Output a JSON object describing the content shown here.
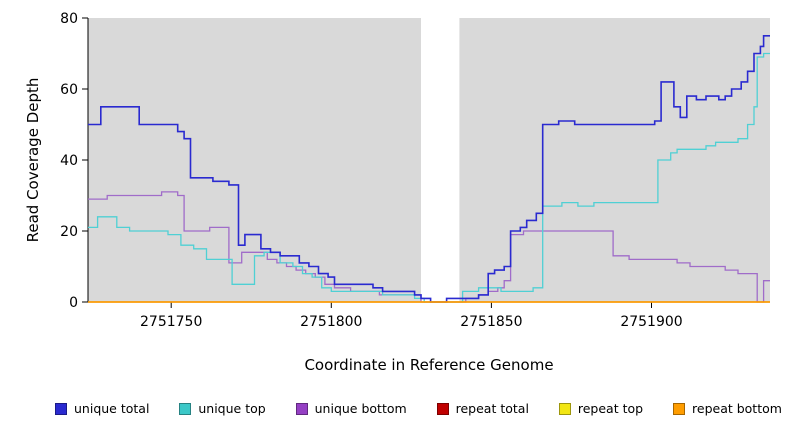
{
  "figure": {
    "xlabel": "Coordinate in Reference Genome",
    "ylabel": "Read Coverage Depth"
  },
  "chart_data": {
    "type": "line",
    "step": true,
    "title": "",
    "xlabel": "Coordinate in Reference Genome",
    "ylabel": "Read Coverage Depth",
    "xlim": [
      2751724,
      2751937
    ],
    "ylim": [
      0,
      80
    ],
    "x_ticks": [
      2751750,
      2751800,
      2751850,
      2751900
    ],
    "y_ticks": [
      0,
      20,
      40,
      60,
      80
    ],
    "panel_bg": "#d9d9d9",
    "gap_region": {
      "x0": 2751828,
      "x1": 2751840,
      "color": "#ffffff"
    },
    "legend_position": "bottom",
    "series": [
      {
        "name": "unique bottom",
        "color": "#a06cc9",
        "width": 1.3,
        "points": [
          [
            2751724,
            29
          ],
          [
            2751730,
            30
          ],
          [
            2751747,
            31
          ],
          [
            2751752,
            30
          ],
          [
            2751754,
            20
          ],
          [
            2751762,
            21
          ],
          [
            2751768,
            11
          ],
          [
            2751772,
            14
          ],
          [
            2751780,
            12
          ],
          [
            2751783,
            11
          ],
          [
            2751786,
            10
          ],
          [
            2751789,
            9
          ],
          [
            2751792,
            8
          ],
          [
            2751795,
            7
          ],
          [
            2751798,
            5
          ],
          [
            2751801,
            4
          ],
          [
            2751806,
            3
          ],
          [
            2751815,
            2
          ],
          [
            2751828,
            0
          ],
          [
            2751842,
            1
          ],
          [
            2751846,
            2
          ],
          [
            2751849,
            3
          ],
          [
            2751852,
            4
          ],
          [
            2751854,
            6
          ],
          [
            2751856,
            19
          ],
          [
            2751860,
            20
          ],
          [
            2751888,
            13
          ],
          [
            2751893,
            12
          ],
          [
            2751908,
            11
          ],
          [
            2751912,
            10
          ],
          [
            2751923,
            9
          ],
          [
            2751927,
            8
          ],
          [
            2751933,
            0
          ],
          [
            2751935,
            6
          ]
        ]
      },
      {
        "name": "unique top",
        "color": "#4fd0d4",
        "width": 1.3,
        "points": [
          [
            2751724,
            21
          ],
          [
            2751727,
            24
          ],
          [
            2751733,
            21
          ],
          [
            2751737,
            20
          ],
          [
            2751749,
            19
          ],
          [
            2751753,
            16
          ],
          [
            2751757,
            15
          ],
          [
            2751761,
            12
          ],
          [
            2751769,
            5
          ],
          [
            2751776,
            13
          ],
          [
            2751779,
            14
          ],
          [
            2751784,
            11
          ],
          [
            2751788,
            10
          ],
          [
            2751791,
            8
          ],
          [
            2751794,
            7
          ],
          [
            2751797,
            4
          ],
          [
            2751800,
            3
          ],
          [
            2751816,
            2
          ],
          [
            2751826,
            1
          ],
          [
            2751829,
            0
          ],
          [
            2751841,
            3
          ],
          [
            2751846,
            4
          ],
          [
            2751853,
            3
          ],
          [
            2751863,
            4
          ],
          [
            2751866,
            27
          ],
          [
            2751872,
            28
          ],
          [
            2751877,
            27
          ],
          [
            2751882,
            28
          ],
          [
            2751902,
            40
          ],
          [
            2751906,
            42
          ],
          [
            2751908,
            43
          ],
          [
            2751917,
            44
          ],
          [
            2751920,
            45
          ],
          [
            2751927,
            46
          ],
          [
            2751930,
            50
          ],
          [
            2751932,
            55
          ],
          [
            2751933,
            69
          ],
          [
            2751935,
            70
          ]
        ]
      },
      {
        "name": "unique total",
        "color": "#2a2ad0",
        "width": 1.6,
        "points": [
          [
            2751724,
            50
          ],
          [
            2751728,
            55
          ],
          [
            2751740,
            50
          ],
          [
            2751752,
            48
          ],
          [
            2751754,
            46
          ],
          [
            2751756,
            35
          ],
          [
            2751763,
            34
          ],
          [
            2751768,
            33
          ],
          [
            2751771,
            16
          ],
          [
            2751773,
            19
          ],
          [
            2751778,
            15
          ],
          [
            2751781,
            14
          ],
          [
            2751784,
            13
          ],
          [
            2751790,
            11
          ],
          [
            2751793,
            10
          ],
          [
            2751796,
            8
          ],
          [
            2751799,
            7
          ],
          [
            2751801,
            5
          ],
          [
            2751813,
            4
          ],
          [
            2751816,
            3
          ],
          [
            2751826,
            2
          ],
          [
            2751828,
            1
          ],
          [
            2751831,
            0
          ],
          [
            2751836,
            1
          ],
          [
            2751846,
            2
          ],
          [
            2751849,
            8
          ],
          [
            2751851,
            9
          ],
          [
            2751854,
            10
          ],
          [
            2751856,
            20
          ],
          [
            2751859,
            21
          ],
          [
            2751861,
            23
          ],
          [
            2751864,
            25
          ],
          [
            2751866,
            50
          ],
          [
            2751871,
            51
          ],
          [
            2751876,
            50
          ],
          [
            2751901,
            51
          ],
          [
            2751903,
            62
          ],
          [
            2751907,
            55
          ],
          [
            2751909,
            52
          ],
          [
            2751911,
            58
          ],
          [
            2751914,
            57
          ],
          [
            2751917,
            58
          ],
          [
            2751921,
            57
          ],
          [
            2751923,
            58
          ],
          [
            2751925,
            60
          ],
          [
            2751928,
            62
          ],
          [
            2751930,
            65
          ],
          [
            2751932,
            70
          ],
          [
            2751934,
            72
          ],
          [
            2751935,
            75
          ]
        ]
      },
      {
        "name": "repeat total",
        "color": "#c00000",
        "width": 1.3,
        "points": [
          [
            2751724,
            0
          ]
        ]
      },
      {
        "name": "repeat top",
        "color": "#f2e614",
        "width": 1.3,
        "points": [
          [
            2751724,
            0
          ]
        ]
      },
      {
        "name": "repeat bottom",
        "color": "#ff9d00",
        "width": 1.6,
        "points": [
          [
            2751724,
            0
          ]
        ]
      }
    ],
    "legend": [
      {
        "label": "unique total",
        "color": "#2a2ad0"
      },
      {
        "label": "unique top",
        "color": "#3cc8c8"
      },
      {
        "label": "unique bottom",
        "color": "#9540c4"
      },
      {
        "label": "repeat total",
        "color": "#c00000"
      },
      {
        "label": "repeat top",
        "color": "#f2e614"
      },
      {
        "label": "repeat bottom",
        "color": "#ff9d00"
      }
    ]
  }
}
